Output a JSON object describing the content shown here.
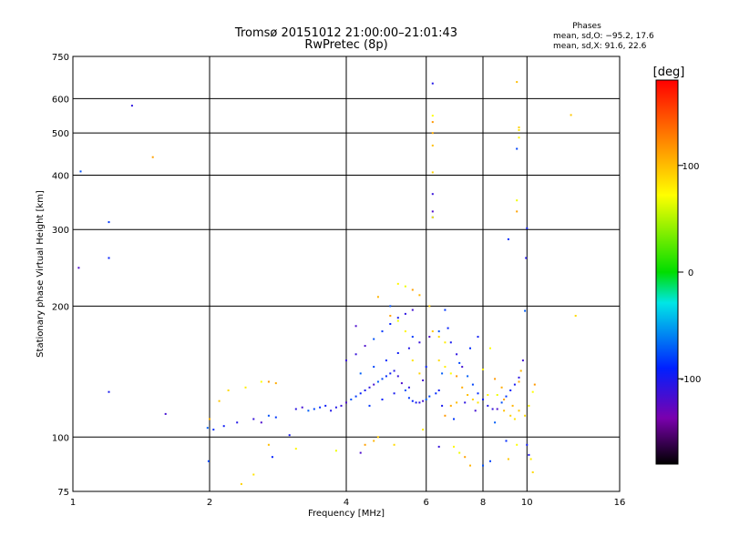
{
  "chart_data": {
    "type": "scatter",
    "title": "Tromsø 20151012 21:00:00–21:01:43",
    "subtitle": "RwPretec (8p)",
    "xlabel": "Frequency [MHz]",
    "ylabel": "Stationary phase Virtual Height [km]",
    "x_scale": "log",
    "y_scale": "log",
    "xlim": [
      1,
      16
    ],
    "ylim": [
      75,
      750
    ],
    "x_ticks": [
      1,
      2,
      4,
      6,
      8,
      10,
      16
    ],
    "y_ticks": [
      75,
      100,
      200,
      300,
      400,
      500,
      600,
      750
    ],
    "grid": true,
    "stats": {
      "heading": "Phases",
      "line_o": "mean, sd,O: −95.2, 17.6",
      "line_x": "mean, sd,X:  91.6, 22.6"
    },
    "colorbar": {
      "label": "[deg]",
      "ticks": [
        100,
        0,
        -100
      ],
      "range": [
        -180,
        180
      ],
      "colormap": "rainbow"
    },
    "series": [
      {
        "mode": "O",
        "mean_phase": -95.2,
        "points": [
          [
            1.03,
            245
          ],
          [
            1.04,
            408
          ],
          [
            1.2,
            312
          ],
          [
            1.2,
            258
          ],
          [
            1.2,
            127
          ],
          [
            1.35,
            578
          ],
          [
            1.6,
            113
          ],
          [
            1.98,
            105
          ],
          [
            1.99,
            88
          ],
          [
            2.04,
            104
          ],
          [
            2.15,
            106
          ],
          [
            2.3,
            108
          ],
          [
            2.5,
            110
          ],
          [
            2.6,
            108
          ],
          [
            2.7,
            112
          ],
          [
            2.8,
            111
          ],
          [
            2.75,
            90
          ],
          [
            3.0,
            101
          ],
          [
            3.1,
            116
          ],
          [
            3.2,
            117
          ],
          [
            3.3,
            115
          ],
          [
            3.4,
            116
          ],
          [
            3.5,
            117
          ],
          [
            3.6,
            118
          ],
          [
            3.8,
            117
          ],
          [
            3.9,
            118
          ],
          [
            4.0,
            120
          ],
          [
            4.1,
            122
          ],
          [
            4.2,
            124
          ],
          [
            4.3,
            126
          ],
          [
            4.4,
            128
          ],
          [
            4.5,
            130
          ],
          [
            4.6,
            132
          ],
          [
            4.7,
            134
          ],
          [
            4.8,
            136
          ],
          [
            4.9,
            138
          ],
          [
            5.0,
            140
          ],
          [
            5.1,
            142
          ],
          [
            5.2,
            138
          ],
          [
            5.3,
            133
          ],
          [
            5.4,
            128
          ],
          [
            5.5,
            123
          ],
          [
            5.6,
            121
          ],
          [
            5.7,
            120
          ],
          [
            5.8,
            120
          ],
          [
            5.9,
            121
          ],
          [
            6.0,
            122
          ],
          [
            6.1,
            124
          ],
          [
            6.3,
            126
          ],
          [
            6.4,
            128
          ],
          [
            6.2,
            650
          ],
          [
            6.2,
            362
          ],
          [
            6.2,
            330
          ],
          [
            6.2,
            320
          ],
          [
            6.6,
            196
          ],
          [
            6.7,
            178
          ],
          [
            6.8,
            165
          ],
          [
            7.0,
            155
          ],
          [
            7.2,
            145
          ],
          [
            7.4,
            138
          ],
          [
            7.6,
            132
          ],
          [
            7.8,
            126
          ],
          [
            8.0,
            122
          ],
          [
            8.2,
            118
          ],
          [
            8.4,
            116
          ],
          [
            8.6,
            116
          ],
          [
            8.8,
            120
          ],
          [
            9.0,
            124
          ],
          [
            9.2,
            128
          ],
          [
            9.4,
            132
          ],
          [
            9.6,
            137
          ],
          [
            9.8,
            150
          ],
          [
            9.9,
            195
          ],
          [
            9.5,
            460
          ],
          [
            9.1,
            285
          ],
          [
            10.0,
            302
          ],
          [
            9.95,
            258
          ],
          [
            4.2,
            155
          ],
          [
            4.4,
            162
          ],
          [
            4.6,
            168
          ],
          [
            4.8,
            175
          ],
          [
            5.0,
            182
          ],
          [
            5.2,
            188
          ],
          [
            5.4,
            192
          ],
          [
            5.6,
            196
          ],
          [
            4.3,
            140
          ],
          [
            4.6,
            145
          ],
          [
            4.9,
            150
          ],
          [
            5.2,
            156
          ],
          [
            5.5,
            160
          ],
          [
            5.8,
            165
          ],
          [
            6.1,
            170
          ],
          [
            6.4,
            175
          ],
          [
            4.5,
            118
          ],
          [
            4.8,
            122
          ],
          [
            5.1,
            126
          ],
          [
            5.5,
            130
          ],
          [
            5.9,
            135
          ],
          [
            6.5,
            140
          ],
          [
            7.1,
            148
          ],
          [
            7.5,
            160
          ],
          [
            7.8,
            170
          ],
          [
            3.7,
            115
          ],
          [
            4.0,
            150
          ],
          [
            4.2,
            180
          ],
          [
            5.0,
            200
          ],
          [
            5.6,
            170
          ],
          [
            6.0,
            145
          ],
          [
            6.5,
            118
          ],
          [
            7.3,
            120
          ],
          [
            7.7,
            115
          ],
          [
            8.5,
            108
          ],
          [
            8.3,
            88
          ],
          [
            9.0,
            98
          ],
          [
            10.0,
            96
          ],
          [
            10.1,
            91
          ],
          [
            6.4,
            95
          ],
          [
            4.3,
            92
          ],
          [
            8.0,
            86
          ],
          [
            6.9,
            110
          ]
        ]
      },
      {
        "mode": "X",
        "mean_phase": 91.6,
        "points": [
          [
            1.5,
            440
          ],
          [
            2.0,
            110
          ],
          [
            2.1,
            121
          ],
          [
            2.2,
            128
          ],
          [
            2.4,
            130
          ],
          [
            2.6,
            134
          ],
          [
            2.7,
            134
          ],
          [
            2.8,
            133
          ],
          [
            2.7,
            96
          ],
          [
            2.35,
            78
          ],
          [
            2.5,
            82
          ],
          [
            3.1,
            94
          ],
          [
            3.8,
            93
          ],
          [
            4.4,
            96
          ],
          [
            4.6,
            98
          ],
          [
            4.7,
            100
          ],
          [
            5.1,
            96
          ],
          [
            5.9,
            104
          ],
          [
            6.2,
            548
          ],
          [
            6.2,
            530
          ],
          [
            6.2,
            500
          ],
          [
            6.2,
            468
          ],
          [
            6.2,
            406
          ],
          [
            6.2,
            320
          ],
          [
            5.2,
            225
          ],
          [
            5.4,
            222
          ],
          [
            5.6,
            218
          ],
          [
            5.8,
            212
          ],
          [
            6.1,
            200
          ],
          [
            6.4,
            150
          ],
          [
            6.6,
            145
          ],
          [
            6.8,
            140
          ],
          [
            7.0,
            138
          ],
          [
            7.2,
            130
          ],
          [
            7.4,
            125
          ],
          [
            7.6,
            122
          ],
          [
            7.8,
            120
          ],
          [
            8.2,
            125
          ],
          [
            8.6,
            125
          ],
          [
            8.9,
            122
          ],
          [
            9.3,
            118
          ],
          [
            9.6,
            115
          ],
          [
            9.9,
            112
          ],
          [
            10.1,
            118
          ],
          [
            10.3,
            127
          ],
          [
            10.4,
            132
          ],
          [
            9.6,
            134
          ],
          [
            9.5,
            655
          ],
          [
            9.6,
            515
          ],
          [
            9.6,
            508
          ],
          [
            9.6,
            488
          ],
          [
            9.5,
            350
          ],
          [
            9.5,
            330
          ],
          [
            9.7,
            142
          ],
          [
            12.5,
            550
          ],
          [
            12.8,
            190
          ],
          [
            8.0,
            143
          ],
          [
            8.3,
            160
          ],
          [
            8.5,
            136
          ],
          [
            8.8,
            130
          ],
          [
            8.9,
            115
          ],
          [
            9.2,
            112
          ],
          [
            9.4,
            110
          ],
          [
            6.9,
            95
          ],
          [
            7.1,
            92
          ],
          [
            7.3,
            90
          ],
          [
            7.5,
            86
          ],
          [
            9.1,
            89
          ],
          [
            10.3,
            83
          ],
          [
            10.2,
            89
          ],
          [
            9.5,
            96
          ],
          [
            6.6,
            112
          ],
          [
            6.8,
            118
          ],
          [
            7.0,
            120
          ],
          [
            5.8,
            140
          ],
          [
            5.6,
            150
          ],
          [
            5.4,
            175
          ],
          [
            5.2,
            185
          ],
          [
            5.0,
            190
          ],
          [
            4.7,
            210
          ],
          [
            6.2,
            175
          ],
          [
            6.4,
            170
          ],
          [
            6.6,
            165
          ]
        ]
      }
    ]
  }
}
